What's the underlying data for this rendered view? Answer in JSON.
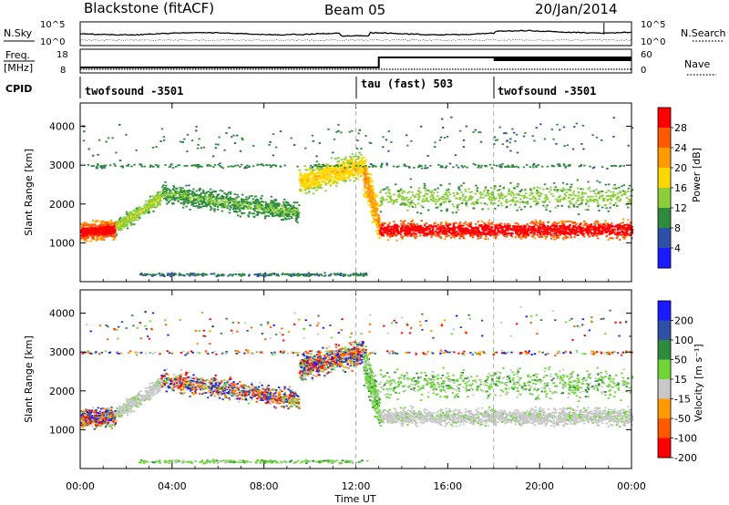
{
  "header": {
    "station": "Blackstone (fitACF)",
    "beam": "Beam 05",
    "date": "20/Jan/2014"
  },
  "chart_data": [
    {
      "type": "line",
      "panel": "noise",
      "left_label": "N.Sky",
      "right_label": "N.Search",
      "left_ticks": [
        "10^5",
        "10^0"
      ],
      "right_ticks": [
        "10^5",
        "10^0"
      ]
    },
    {
      "type": "line",
      "panel": "frequency",
      "left_label_top": "Freq.",
      "left_label_bottom": "[MHz]",
      "right_label": "Nave",
      "left_ticks": [
        "18",
        "8"
      ],
      "right_ticks": [
        "60",
        "0"
      ],
      "frequency_step_hour": 13,
      "nave_step_hour": 18
    },
    {
      "type": "table",
      "panel": "cpid",
      "label": "CPID",
      "segments": [
        {
          "start_hour": 0,
          "name": "twofsound -3501"
        },
        {
          "start_hour": 12,
          "name": "tau (fast) 503"
        },
        {
          "start_hour": 18,
          "name": "twofsound -3501"
        }
      ]
    },
    {
      "type": "heatmap",
      "panel": "power",
      "ylabel": "Slant Range [km]",
      "ylim": [
        0,
        4600
      ],
      "yticks": [
        "1000",
        "2000",
        "3000",
        "4000"
      ],
      "colorbar_label": "Power [dB]",
      "colorbar_ticks": [
        "28",
        "24",
        "20",
        "16",
        "12",
        "8",
        "4"
      ],
      "colors": [
        "#ff0000",
        "#ff5a00",
        "#ff9a00",
        "#ffd700",
        "#8ccd3c",
        "#2e8b3e",
        "#2f4fa6",
        "#1a1aff"
      ]
    },
    {
      "type": "heatmap",
      "panel": "velocity",
      "ylabel": "Slant Range [km]",
      "ylim": [
        0,
        4600
      ],
      "yticks": [
        "1000",
        "2000",
        "3000",
        "4000"
      ],
      "colorbar_label": "Velocity [m s⁻¹]",
      "colorbar_ticks": [
        "200",
        "100",
        "50",
        "15",
        "-15",
        "-50",
        "-100",
        "-200"
      ],
      "colors": [
        "#1a1aff",
        "#2f4fa6",
        "#2e8b3e",
        "#6fd63a",
        "#c8c8c8",
        "#ff9a00",
        "#ff5a00",
        "#ff0000"
      ]
    }
  ],
  "xaxis": {
    "label": "Time UT",
    "ticks": [
      "00:00",
      "04:00",
      "08:00",
      "12:00",
      "16:00",
      "20:00",
      "00:00"
    ],
    "range_hours": [
      0,
      24
    ]
  }
}
